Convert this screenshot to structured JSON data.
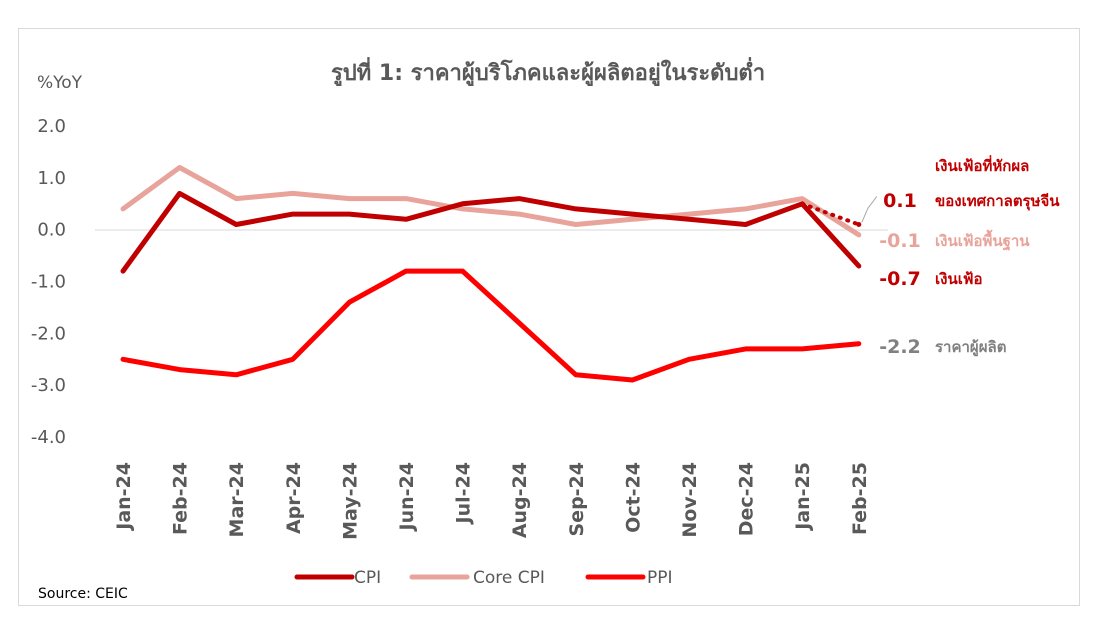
{
  "chart_data": {
    "type": "line",
    "title": "รูปที่ 1: ราคาผู้บริโภคและผู้ผลิตอยู่ในระดับต่ำ",
    "ylabel": "%YoY",
    "ylim": [
      -4.0,
      2.0
    ],
    "yticks": [
      "2.0",
      "1.0",
      "0.0",
      "-1.0",
      "-2.0",
      "-3.0",
      "-4.0"
    ],
    "categories": [
      "Jan-24",
      "Feb-24",
      "Mar-24",
      "Apr-24",
      "May-24",
      "Jun-24",
      "Jul-24",
      "Aug-24",
      "Sep-24",
      "Oct-24",
      "Nov-24",
      "Dec-24",
      "Jan-25",
      "Feb-25"
    ],
    "grid": false,
    "legend_position": "bottom",
    "series": [
      {
        "name": "CPI",
        "color": "#c00000",
        "values": [
          -0.8,
          0.7,
          0.1,
          0.3,
          0.3,
          0.2,
          0.5,
          0.6,
          0.4,
          0.3,
          0.2,
          0.1,
          0.5,
          -0.7
        ]
      },
      {
        "name": "Core  CPI",
        "color": "#e8a39a",
        "values": [
          0.4,
          1.2,
          0.6,
          0.7,
          0.6,
          0.6,
          0.4,
          0.3,
          0.1,
          0.2,
          0.3,
          0.4,
          0.6,
          -0.1
        ]
      },
      {
        "name": "PPI",
        "color": "#ff0000",
        "values": [
          -2.5,
          -2.7,
          -2.8,
          -2.5,
          -1.4,
          -0.8,
          -0.8,
          -1.8,
          -2.8,
          -2.9,
          -2.5,
          -2.3,
          -2.3,
          -2.2
        ]
      }
    ],
    "extra_point": {
      "category": "Feb-25",
      "value": 0.1,
      "color": "#c00000",
      "style": "dotted"
    },
    "annotations": [
      {
        "value": "0.1",
        "text_lines": [
          "เงินเฟ้อที่หักผล",
          "ของเทศกาลตรุษจีน"
        ],
        "color": "#c00000",
        "anchor_value": 0.1
      },
      {
        "value": "-0.1",
        "text_lines": [
          "เงินเฟ้อพื้นฐาน"
        ],
        "color": "#e8a39a",
        "anchor_value": -0.1
      },
      {
        "value": "-0.7",
        "text_lines": [
          "เงินเฟ้อ"
        ],
        "color": "#c00000",
        "anchor_value": -0.7
      },
      {
        "value": "-2.2",
        "text_lines": [
          "ราคาผู้ผลิต"
        ],
        "color": "#808080",
        "anchor_value": -2.2
      }
    ],
    "source": "Source:  CEIC"
  }
}
